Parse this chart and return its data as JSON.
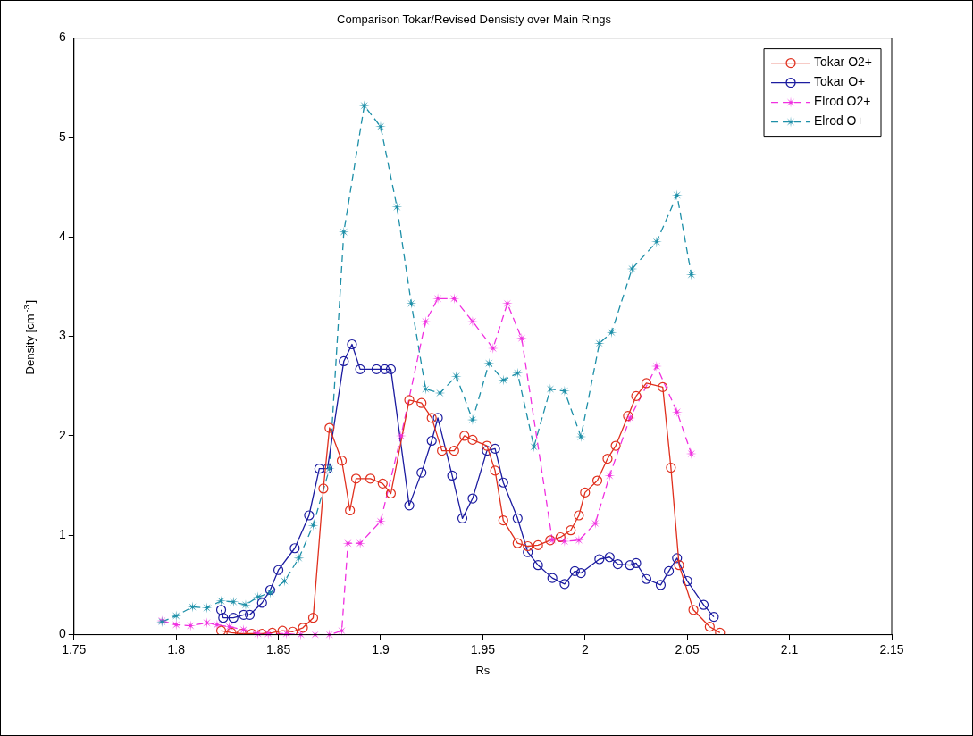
{
  "chart_data": {
    "type": "line",
    "title": "Comparison Tokar/Revised Densisty over Main Rings",
    "xlabel": "Rs",
    "ylabel": "Density [cm$^{-3}$]",
    "xlim": [
      1.75,
      2.15
    ],
    "xticks": [
      1.75,
      1.8,
      1.85,
      1.9,
      1.95,
      2,
      2.05,
      2.1,
      2.15
    ],
    "ylim": [
      0,
      6
    ],
    "yticks": [
      0,
      1,
      2,
      3,
      4,
      5,
      6
    ],
    "grid": false,
    "legend": "top right",
    "series": [
      {
        "name": "Tokar O2+",
        "color": "#e0301e",
        "marker": "circle",
        "line_style": "solid",
        "x": [
          1.822,
          1.827,
          1.832,
          1.837,
          1.842,
          1.847,
          1.852,
          1.857,
          1.862,
          1.867,
          1.872,
          1.875,
          1.881,
          1.885,
          1.888,
          1.895,
          1.901,
          1.905,
          1.914,
          1.92,
          1.925,
          1.93,
          1.936,
          1.941,
          1.945,
          1.952,
          1.956,
          1.96,
          1.967,
          1.972,
          1.977,
          1.983,
          1.988,
          1.993,
          1.997,
          2.0,
          2.006,
          2.011,
          2.015,
          2.021,
          2.025,
          2.03,
          2.038,
          2.042,
          2.046,
          2.053,
          2.061,
          2.066
        ],
        "values": [
          0.04,
          0.02,
          0.01,
          0.01,
          0.01,
          0.02,
          0.04,
          0.03,
          0.07,
          0.17,
          1.47,
          2.08,
          1.75,
          1.25,
          1.57,
          1.57,
          1.52,
          1.42,
          2.36,
          2.33,
          2.18,
          1.85,
          1.85,
          2.0,
          1.96,
          1.9,
          1.65,
          1.15,
          0.92,
          0.89,
          0.9,
          0.95,
          0.98,
          1.05,
          1.2,
          1.43,
          1.55,
          1.77,
          1.9,
          2.2,
          2.4,
          2.53,
          2.49,
          1.68,
          0.7,
          0.25,
          0.08,
          0.02
        ]
      },
      {
        "name": "Tokar O+",
        "color": "#1c1ca0",
        "marker": "circle",
        "line_style": "solid",
        "x": [
          1.822,
          1.823,
          1.828,
          1.833,
          1.836,
          1.842,
          1.846,
          1.85,
          1.858,
          1.865,
          1.87,
          1.874,
          1.882,
          1.886,
          1.89,
          1.898,
          1.902,
          1.905,
          1.914,
          1.92,
          1.925,
          1.928,
          1.935,
          1.94,
          1.945,
          1.952,
          1.956,
          1.96,
          1.967,
          1.972,
          1.977,
          1.984,
          1.99,
          1.995,
          1.998,
          2.007,
          2.012,
          2.016,
          2.022,
          2.025,
          2.03,
          2.037,
          2.041,
          2.045,
          2.05,
          2.058,
          2.063
        ],
        "values": [
          0.25,
          0.17,
          0.17,
          0.2,
          0.2,
          0.32,
          0.45,
          0.65,
          0.87,
          1.2,
          1.67,
          1.67,
          2.75,
          2.92,
          2.67,
          2.67,
          2.67,
          2.67,
          1.3,
          1.63,
          1.95,
          2.18,
          1.6,
          1.17,
          1.37,
          1.85,
          1.87,
          1.53,
          1.17,
          0.83,
          0.7,
          0.57,
          0.51,
          0.64,
          0.62,
          0.76,
          0.78,
          0.71,
          0.7,
          0.72,
          0.56,
          0.5,
          0.64,
          0.77,
          0.54,
          0.3,
          0.18
        ]
      },
      {
        "name": "Elrod O2+",
        "color": "#f030e0",
        "marker": "star",
        "line_style": "dashed",
        "x": [
          1.793,
          1.8,
          1.807,
          1.815,
          1.82,
          1.826,
          1.833,
          1.84,
          1.845,
          1.854,
          1.861,
          1.868,
          1.875,
          1.881,
          1.884,
          1.89,
          1.9,
          1.91,
          1.922,
          1.928,
          1.936,
          1.945,
          1.955,
          1.962,
          1.969,
          1.984,
          1.99,
          1.997,
          2.005,
          2.012,
          2.022,
          2.035,
          2.045,
          2.052
        ],
        "values": [
          0.14,
          0.1,
          0.09,
          0.12,
          0.1,
          0.08,
          0.05,
          0.01,
          0.01,
          0.01,
          0,
          0,
          0,
          0.04,
          0.92,
          0.92,
          1.14,
          2.0,
          3.15,
          3.38,
          3.38,
          3.15,
          2.88,
          3.33,
          2.98,
          0.95,
          0.94,
          0.95,
          1.12,
          1.6,
          2.18,
          2.7,
          2.24,
          1.82
        ]
      },
      {
        "name": "Elrod O+",
        "color": "#1d8fa8",
        "marker": "star",
        "line_style": "dashed",
        "x": [
          1.793,
          1.8,
          1.808,
          1.815,
          1.822,
          1.828,
          1.834,
          1.84,
          1.846,
          1.853,
          1.86,
          1.867,
          1.875,
          1.882,
          1.892,
          1.9,
          1.908,
          1.915,
          1.922,
          1.929,
          1.937,
          1.945,
          1.953,
          1.96,
          1.967,
          1.975,
          1.983,
          1.99,
          1.998,
          2.007,
          2.013,
          2.023,
          2.035,
          2.045,
          2.052
        ],
        "values": [
          0.13,
          0.19,
          0.28,
          0.27,
          0.34,
          0.33,
          0.3,
          0.38,
          0.42,
          0.54,
          0.77,
          1.1,
          1.67,
          4.05,
          5.32,
          5.11,
          4.3,
          3.33,
          2.47,
          2.43,
          2.6,
          2.16,
          2.73,
          2.56,
          2.63,
          1.89,
          2.47,
          2.45,
          1.99,
          2.93,
          3.04,
          3.68,
          3.95,
          4.42,
          3.62
        ]
      }
    ]
  }
}
